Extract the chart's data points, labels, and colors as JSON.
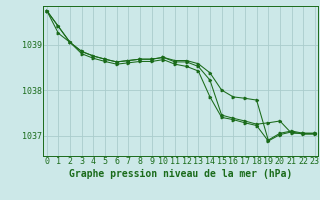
{
  "background_color": "#cce8e8",
  "grid_color": "#aacccc",
  "line_color": "#1a6b1a",
  "marker_color": "#1a6b1a",
  "xlabel": "Graphe pression niveau de la mer (hPa)",
  "xlabel_fontsize": 7,
  "tick_fontsize": 6,
  "ytick_labels": [
    "1037",
    "1038",
    "1039"
  ],
  "ytick_values": [
    1037,
    1038,
    1039
  ],
  "xtick_values": [
    0,
    1,
    2,
    3,
    4,
    5,
    6,
    7,
    8,
    9,
    10,
    11,
    12,
    13,
    14,
    15,
    16,
    17,
    18,
    19,
    20,
    21,
    22,
    23
  ],
  "xlim": [
    -0.3,
    23.3
  ],
  "ylim": [
    1036.55,
    1039.85
  ],
  "curve1": [
    1039.75,
    1039.4,
    1039.05,
    1038.85,
    1038.75,
    1038.68,
    1038.62,
    1038.65,
    1038.68,
    1038.68,
    1038.72,
    1038.65,
    1038.65,
    1038.58,
    1038.38,
    1038.0,
    1037.85,
    1037.82,
    1037.78,
    1036.9,
    1037.05,
    1037.1,
    1037.05,
    1037.05
  ],
  "curve2": [
    1039.75,
    1039.4,
    1039.05,
    1038.85,
    1038.75,
    1038.68,
    1038.62,
    1038.65,
    1038.68,
    1038.68,
    1038.72,
    1038.62,
    1038.62,
    1038.52,
    1038.22,
    1037.45,
    1037.38,
    1037.32,
    1037.25,
    1037.28,
    1037.32,
    1037.05,
    1037.05,
    1037.05
  ],
  "curve3": [
    1039.75,
    1039.25,
    1039.05,
    1038.8,
    1038.7,
    1038.63,
    1038.57,
    1038.6,
    1038.63,
    1038.63,
    1038.67,
    1038.57,
    1038.52,
    1038.42,
    1037.85,
    1037.4,
    1037.35,
    1037.28,
    1037.22,
    1036.88,
    1037.02,
    1037.08,
    1037.03,
    1037.03
  ]
}
